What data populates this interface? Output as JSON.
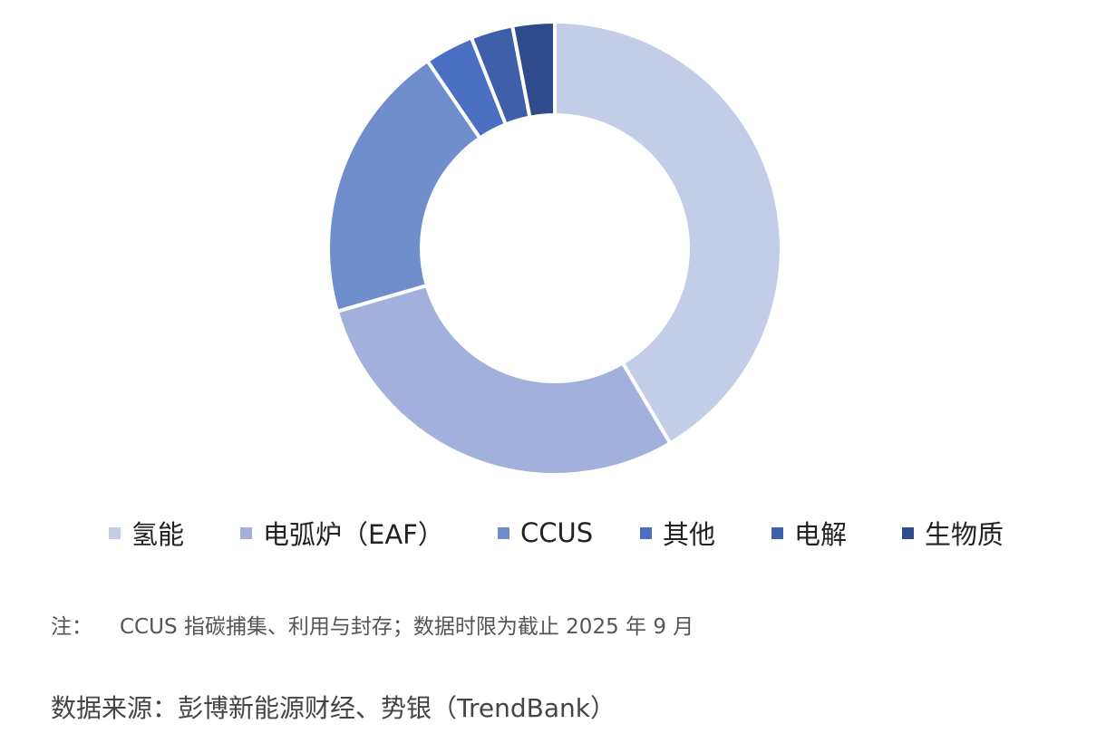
{
  "chart_data": {
    "type": "pie",
    "donut": true,
    "categories": [
      "氢能",
      "电弧炉（EAF）",
      "CCUS",
      "其他",
      "电解",
      "生物质"
    ],
    "values": [
      41.5,
      29.0,
      20.0,
      3.5,
      3.0,
      3.0
    ],
    "colors": [
      "#c3cde8",
      "#a1b1dc",
      "#708dcc",
      "#4a6fc3",
      "#3f5fa8",
      "#2f4b8c"
    ],
    "legend_position": "bottom",
    "start_angle": "top",
    "direction": "clockwise"
  },
  "note": {
    "prefix": "注：",
    "text": "CCUS 指碳捕集、利用与封存；数据时限为截止 2025 年 9 月"
  },
  "source": {
    "text": "数据来源：彭博新能源财经、势银（TrendBank）"
  }
}
